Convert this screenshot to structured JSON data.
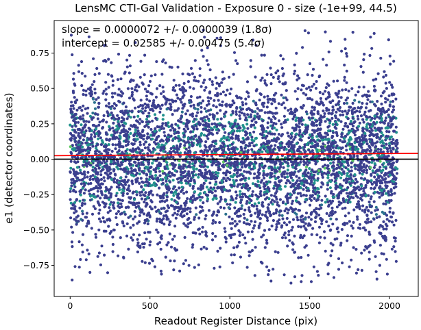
{
  "chart_data": {
    "type": "scatter",
    "title": "LensMC CTI-Gal Validation - Exposure 0 - size (-1e+99, 44.5)",
    "xlabel": "Readout Register Distance (pix)",
    "ylabel": "e1 (detector coordinates)",
    "xlim": [
      -100,
      2180
    ],
    "ylim": [
      -0.97,
      0.98
    ],
    "xticks": [
      0,
      500,
      1000,
      1500,
      2000
    ],
    "yticks": [
      -0.75,
      -0.5,
      -0.25,
      0.0,
      0.25,
      0.5,
      0.75
    ],
    "ytick_labels": [
      "−0.75",
      "−0.50",
      "−0.25",
      "0.00",
      "0.25",
      "0.50",
      "0.75"
    ],
    "grid": false,
    "legend": "none",
    "annotations": [
      "slope = 0.0000072 +/- 0.0000039 (1.8σ)",
      "intercept = 0.02585 +/- 0.00475 (5.4σ)"
    ],
    "fit_line": {
      "slope": 7.2e-06,
      "intercept": 0.02585,
      "color": "#ff0000"
    },
    "zero_line": {
      "y": 0.0,
      "color": "#000000"
    },
    "points": {
      "x_range": [
        0,
        2050
      ],
      "y_center": 0.0,
      "y_spread": 0.3,
      "color_scale": "viridis (point density)",
      "dominant_color": "#3b3f8f",
      "dense_color": "#21918c",
      "peak_color": "#5ec962"
    }
  }
}
